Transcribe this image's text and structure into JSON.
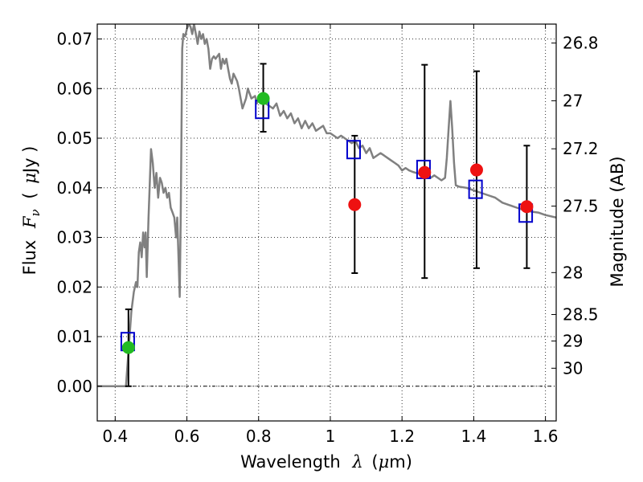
{
  "chart_data": {
    "type": "scatter",
    "xlabel_main": "Wavelength",
    "xlabel_sym": "λ",
    "xlabel_unit_open": "(",
    "xlabel_mu": "μ",
    "xlabel_unit_rest": "m)",
    "ylabel_main": "Flux",
    "ylabel_sym": "F",
    "ylabel_sub": "ν",
    "ylabel_unit_open": "(",
    "ylabel_mu": "μ",
    "ylabel_unit_rest": "Jy )",
    "y2label": "Magnitude (AB)",
    "xlim": [
      0.35,
      1.63
    ],
    "ylim": [
      -0.007,
      0.073
    ],
    "grid": true,
    "x_ticks": [
      {
        "v": 0.4,
        "label": "0.4"
      },
      {
        "v": 0.6,
        "label": "0.6"
      },
      {
        "v": 0.8,
        "label": "0.8"
      },
      {
        "v": 1.0,
        "label": "1"
      },
      {
        "v": 1.2,
        "label": "1.2"
      },
      {
        "v": 1.4,
        "label": "1.4"
      },
      {
        "v": 1.6,
        "label": "1.6"
      }
    ],
    "y_ticks": [
      {
        "v": 0.0,
        "label": "0.00"
      },
      {
        "v": 0.01,
        "label": "0.01"
      },
      {
        "v": 0.02,
        "label": "0.02"
      },
      {
        "v": 0.03,
        "label": "0.03"
      },
      {
        "v": 0.04,
        "label": "0.04"
      },
      {
        "v": 0.05,
        "label": "0.05"
      },
      {
        "v": 0.06,
        "label": "0.06"
      },
      {
        "v": 0.07,
        "label": "0.07"
      }
    ],
    "mag_ticks": [
      {
        "mag": 26.8,
        "label": "26.8"
      },
      {
        "mag": 27.0,
        "label": "27"
      },
      {
        "mag": 27.2,
        "label": "27.2"
      },
      {
        "mag": 27.5,
        "label": "27.5"
      },
      {
        "mag": 28.0,
        "label": "28"
      },
      {
        "mag": 28.5,
        "label": "28.5"
      },
      {
        "mag": 29.0,
        "label": "29"
      },
      {
        "mag": 30.0,
        "label": "30"
      }
    ],
    "sed_model": {
      "name": "model SED",
      "color": "#808080",
      "points": [
        [
          0.35,
          0.0
        ],
        [
          0.43,
          0.0
        ],
        [
          0.432,
          0.002
        ],
        [
          0.438,
          0.008
        ],
        [
          0.445,
          0.015
        ],
        [
          0.452,
          0.019
        ],
        [
          0.458,
          0.021
        ],
        [
          0.462,
          0.02
        ],
        [
          0.466,
          0.027
        ],
        [
          0.47,
          0.029
        ],
        [
          0.474,
          0.026
        ],
        [
          0.478,
          0.031
        ],
        [
          0.482,
          0.028
        ],
        [
          0.485,
          0.031
        ],
        [
          0.488,
          0.022
        ],
        [
          0.493,
          0.034
        ],
        [
          0.5,
          0.0478
        ],
        [
          0.505,
          0.045
        ],
        [
          0.51,
          0.04
        ],
        [
          0.515,
          0.043
        ],
        [
          0.52,
          0.038
        ],
        [
          0.525,
          0.042
        ],
        [
          0.53,
          0.041
        ],
        [
          0.535,
          0.039
        ],
        [
          0.54,
          0.04
        ],
        [
          0.545,
          0.038
        ],
        [
          0.55,
          0.039
        ],
        [
          0.555,
          0.036
        ],
        [
          0.56,
          0.035
        ],
        [
          0.565,
          0.034
        ],
        [
          0.57,
          0.03
        ],
        [
          0.573,
          0.034
        ],
        [
          0.577,
          0.025
        ],
        [
          0.58,
          0.018
        ],
        [
          0.583,
          0.035
        ],
        [
          0.587,
          0.068
        ],
        [
          0.59,
          0.071
        ],
        [
          0.595,
          0.0705
        ],
        [
          0.6,
          0.072
        ],
        [
          0.605,
          0.073
        ],
        [
          0.61,
          0.0725
        ],
        [
          0.615,
          0.071
        ],
        [
          0.62,
          0.073
        ],
        [
          0.625,
          0.071
        ],
        [
          0.63,
          0.069
        ],
        [
          0.635,
          0.0715
        ],
        [
          0.64,
          0.07
        ],
        [
          0.645,
          0.071
        ],
        [
          0.65,
          0.069
        ],
        [
          0.655,
          0.07
        ],
        [
          0.66,
          0.068
        ],
        [
          0.665,
          0.064
        ],
        [
          0.67,
          0.066
        ],
        [
          0.675,
          0.0665
        ],
        [
          0.68,
          0.066
        ],
        [
          0.685,
          0.0665
        ],
        [
          0.69,
          0.067
        ],
        [
          0.695,
          0.064
        ],
        [
          0.7,
          0.066
        ],
        [
          0.705,
          0.065
        ],
        [
          0.71,
          0.066
        ],
        [
          0.715,
          0.064
        ],
        [
          0.72,
          0.062
        ],
        [
          0.725,
          0.061
        ],
        [
          0.73,
          0.063
        ],
        [
          0.74,
          0.0615
        ],
        [
          0.745,
          0.06
        ],
        [
          0.75,
          0.058
        ],
        [
          0.755,
          0.056
        ],
        [
          0.76,
          0.057
        ],
        [
          0.765,
          0.058
        ],
        [
          0.77,
          0.06
        ],
        [
          0.775,
          0.059
        ],
        [
          0.78,
          0.058
        ],
        [
          0.79,
          0.0585
        ],
        [
          0.795,
          0.057
        ],
        [
          0.8,
          0.058
        ],
        [
          0.81,
          0.0575
        ],
        [
          0.82,
          0.057
        ],
        [
          0.83,
          0.0565
        ],
        [
          0.84,
          0.056
        ],
        [
          0.85,
          0.057
        ],
        [
          0.86,
          0.0545
        ],
        [
          0.87,
          0.0555
        ],
        [
          0.88,
          0.054
        ],
        [
          0.89,
          0.055
        ],
        [
          0.9,
          0.053
        ],
        [
          0.91,
          0.054
        ],
        [
          0.92,
          0.052
        ],
        [
          0.93,
          0.0535
        ],
        [
          0.94,
          0.052
        ],
        [
          0.95,
          0.053
        ],
        [
          0.96,
          0.0515
        ],
        [
          0.97,
          0.052
        ],
        [
          0.98,
          0.0525
        ],
        [
          0.99,
          0.051
        ],
        [
          1.0,
          0.051
        ],
        [
          1.01,
          0.0505
        ],
        [
          1.02,
          0.05
        ],
        [
          1.03,
          0.0505
        ],
        [
          1.04,
          0.05
        ],
        [
          1.05,
          0.0495
        ],
        [
          1.06,
          0.049
        ],
        [
          1.07,
          0.0495
        ],
        [
          1.08,
          0.048
        ],
        [
          1.09,
          0.0485
        ],
        [
          1.1,
          0.047
        ],
        [
          1.11,
          0.048
        ],
        [
          1.12,
          0.046
        ],
        [
          1.13,
          0.0465
        ],
        [
          1.14,
          0.047
        ],
        [
          1.15,
          0.0465
        ],
        [
          1.16,
          0.046
        ],
        [
          1.17,
          0.0455
        ],
        [
          1.18,
          0.045
        ],
        [
          1.19,
          0.0445
        ],
        [
          1.2,
          0.0435
        ],
        [
          1.21,
          0.044
        ],
        [
          1.22,
          0.0435
        ],
        [
          1.23,
          0.0432
        ],
        [
          1.24,
          0.043
        ],
        [
          1.25,
          0.0428
        ],
        [
          1.26,
          0.0432
        ],
        [
          1.27,
          0.043
        ],
        [
          1.28,
          0.042
        ],
        [
          1.29,
          0.0425
        ],
        [
          1.3,
          0.042
        ],
        [
          1.31,
          0.0415
        ],
        [
          1.32,
          0.042
        ],
        [
          1.325,
          0.046
        ],
        [
          1.33,
          0.052
        ],
        [
          1.335,
          0.0575
        ],
        [
          1.34,
          0.052
        ],
        [
          1.345,
          0.045
        ],
        [
          1.35,
          0.0405
        ],
        [
          1.36,
          0.0402
        ],
        [
          1.38,
          0.04
        ],
        [
          1.4,
          0.0395
        ],
        [
          1.42,
          0.039
        ],
        [
          1.44,
          0.0385
        ],
        [
          1.46,
          0.038
        ],
        [
          1.48,
          0.037
        ],
        [
          1.5,
          0.0365
        ],
        [
          1.52,
          0.036
        ],
        [
          1.54,
          0.0355
        ],
        [
          1.56,
          0.0352
        ],
        [
          1.58,
          0.035
        ],
        [
          1.6,
          0.0345
        ],
        [
          1.63,
          0.034
        ]
      ]
    },
    "series": [
      {
        "name": "model photometry",
        "marker": "square",
        "color": "#0000cc",
        "points": [
          [
            0.435,
            0.009
          ],
          [
            0.81,
            0.0558
          ],
          [
            1.065,
            0.0477
          ],
          [
            1.26,
            0.0437
          ],
          [
            1.405,
            0.0397
          ],
          [
            1.545,
            0.0349
          ]
        ]
      },
      {
        "name": "observed photometry",
        "marker": "circle",
        "points": [
          {
            "x": 0.437,
            "y": 0.0078,
            "err": [
              0.0,
              0.0155
            ],
            "color": "#22bb22"
          },
          {
            "x": 0.813,
            "y": 0.058,
            "err": [
              0.0513,
              0.065
            ],
            "color": "#22bb22"
          },
          {
            "x": 1.068,
            "y": 0.0366,
            "err": [
              0.0228,
              0.0505
            ],
            "color": "#ee1111"
          },
          {
            "x": 1.263,
            "y": 0.0431,
            "err": [
              0.0218,
              0.0648
            ],
            "color": "#ee1111"
          },
          {
            "x": 1.408,
            "y": 0.0436,
            "err": [
              0.0238,
              0.0635
            ],
            "color": "#ee1111"
          },
          {
            "x": 1.548,
            "y": 0.0362,
            "err": [
              0.0238,
              0.0485
            ],
            "color": "#ee1111"
          }
        ]
      }
    ]
  }
}
